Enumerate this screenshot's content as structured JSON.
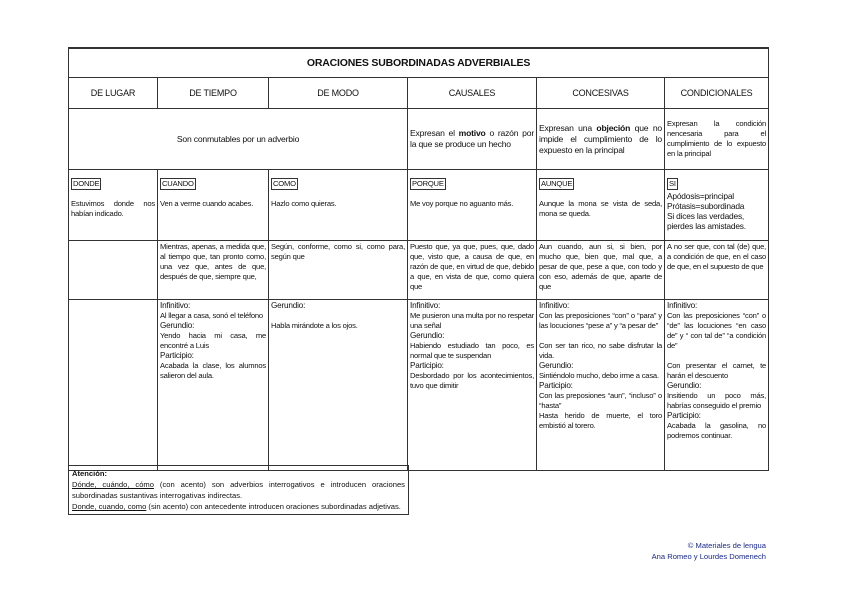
{
  "title": "ORACIONES SUBORDINADAS ADVERBIALES",
  "headers": [
    "DE LUGAR",
    "DE TIEMPO",
    "DE MODO",
    "CAUSALES",
    "CONCESIVAS",
    "CONDICIONALES"
  ],
  "desc": {
    "conmutables": "Son conmutables por un adverbio",
    "causales_pre": "Expresan el ",
    "causales_bold": "motivo",
    "causales_post": " o razón por la que se produce un hecho",
    "concesivas_pre": "Expresan una ",
    "concesivas_bold": "objeción",
    "concesivas_post": " que no impide el cumplimiento de lo expuesto en la principal",
    "condicionales": "Expresan la condición nencesaria para el cumplimiento de lo expuesto en la principal"
  },
  "examples": [
    {
      "nexo": "DONDE",
      "text": "Estuvimos donde nos habían indicado."
    },
    {
      "nexo": "CUANDO",
      "text": "Ven a verme cuando acabes."
    },
    {
      "nexo": "COMO",
      "text": "Hazlo como quieras."
    },
    {
      "nexo": "PORQUE",
      "text": "Me voy porque no aguanto más."
    },
    {
      "nexo": "AUNQUE",
      "text": "Aunque la mona se vista de seda, mona se queda."
    },
    {
      "nexo": "SI",
      "lines": [
        "Apódosis=principal",
        "Prótasis=subordinada",
        "Si dices las verdades, pierdes las amistades."
      ]
    }
  ],
  "lists": [
    "",
    "Mientras, apenas, a medida que, al tiempo que, tan pronto como, una vez que, antes de que, después de que, siempre que,",
    "Según, conforme, como si, como para, según que",
    "Puesto que, ya que, pues, que, dado que, visto que, a causa de que, en razón de que, en virtud de que, debido a que, en vista de que, como quiera que",
    "Aun cuando, aun si, si bien, por mucho que, bien que, mal que, a pesar de que, pese a que, con todo y con eso, además de que, aparte de que",
    "A no ser que, con tal (de) que, a condición de que, en el caso de que, en el supuesto de que"
  ],
  "forms": [
    [],
    [
      "Infinitivo:",
      "Al llegar a casa, sonó el teléfono",
      "Gerundio:",
      "Yendo hacia mi casa, me encontré a Luis",
      "Participio:",
      "Acabada la clase, los alumnos salieron del aula."
    ],
    [
      "Gerundio:",
      "",
      "Habla mirándote a los ojos."
    ],
    [
      "Infinitivo:",
      "Me pusieron una multa por no respetar una señal",
      "Gerundio:",
      "Habiendo estudiado tan poco, es normal que te suspendan",
      "Participio:",
      "Desbordado por los acontecimientos, tuvo que dimitir"
    ],
    [
      "Infinitivo:",
      "Con las preposiciones “con” o “para” y las locuciones “pese a” y “a pesar de”",
      "",
      "Con ser tan rico, no sabe disfrutar la vida.",
      "Gerundio:",
      "Sintiéndolo mucho, debo irme a casa.",
      "Participio:",
      "Con las preposiones “aun”, “incluso” o “hasta”",
      "Hasta herido de muerte, el toro embistió al torero."
    ],
    [
      "Infinitivo:",
      "Con las preposiciones “con” o “de” las locuciones “en caso de” y “ con tal de” “a condición de”",
      "",
      "Con presentar el carnet, te harán el descuento",
      "Gerundio:",
      "Insitiendo un poco más, habrías conseguido el premio",
      "Participio:",
      "Acabada la gasolina, no podremos continuar."
    ]
  ],
  "note": {
    "heading": "Atención:",
    "u1": "Dónde, cuándo, cómo",
    "t1": " (con acento) son adverbios interrogativos e introducen oraciones subordinadas sustantivas interrogativas indirectas.",
    "u2": "Donde, cuando, como",
    "t2": " (sin acento) con antecedente introducen oraciones subordinadas adjetivas."
  },
  "credit": [
    "© Materiales de lengua",
    "Ana Romeo y Lourdes Domenech"
  ],
  "colors": {
    "credit": "#1a2a8a"
  }
}
